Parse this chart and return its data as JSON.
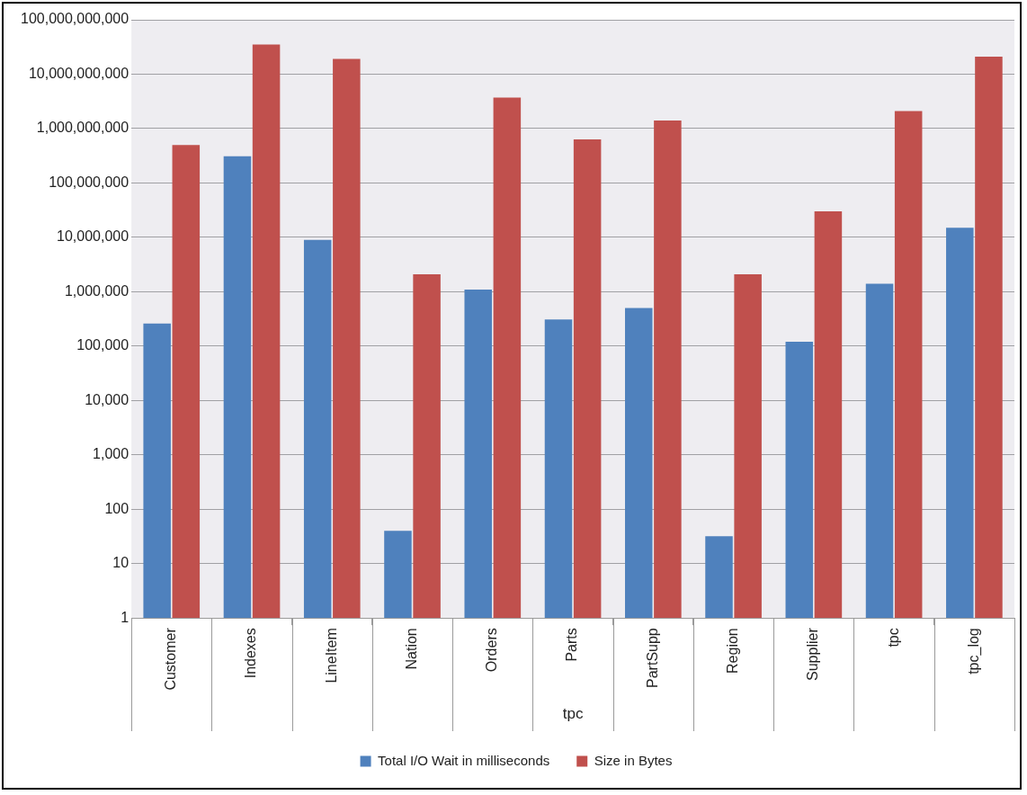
{
  "chart_data": {
    "type": "bar",
    "xlabel": "tpc",
    "categories": [
      "Customer",
      "Indexes",
      "LineItem",
      "Nation",
      "Orders",
      "Parts",
      "PartSupp",
      "Region",
      "Supplier",
      "tpc",
      "tpc_log"
    ],
    "series": [
      {
        "name": "Total I/O Wait in milliseconds",
        "color": "#4f81bd",
        "values": [
          260000,
          310000000,
          9000000,
          40,
          1100000,
          310000,
          500000,
          32,
          120000,
          1400000,
          15000000
        ]
      },
      {
        "name": "Size in Bytes",
        "color": "#c0504d",
        "values": [
          500000000,
          35000000000,
          19000000000,
          2100000,
          3700000000,
          630000000,
          1400000000,
          2100000,
          30000000,
          2100000000,
          21000000000
        ]
      }
    ],
    "log": "y",
    "ylim": [
      1,
      100000000000
    ],
    "yticks": [
      1,
      10,
      {
        "value": 100,
        "label": "100"
      },
      {
        "value": 1000,
        "label": "1,000"
      },
      {
        "value": 10000,
        "label": "10,000"
      },
      {
        "value": 100000,
        "label": "100,000"
      },
      {
        "value": 1000000,
        "label": "1,000,000"
      },
      {
        "value": 10000000,
        "label": "10,000,000"
      },
      {
        "value": 100000000,
        "label": "100,000,000"
      },
      {
        "value": 1000000000,
        "label": "1,000,000,000"
      },
      {
        "value": 10000000000,
        "label": "10,000,000,000"
      },
      {
        "value": 100000000000,
        "label": "100,000,000,000"
      }
    ],
    "grid": "y",
    "legend": "bottom"
  }
}
